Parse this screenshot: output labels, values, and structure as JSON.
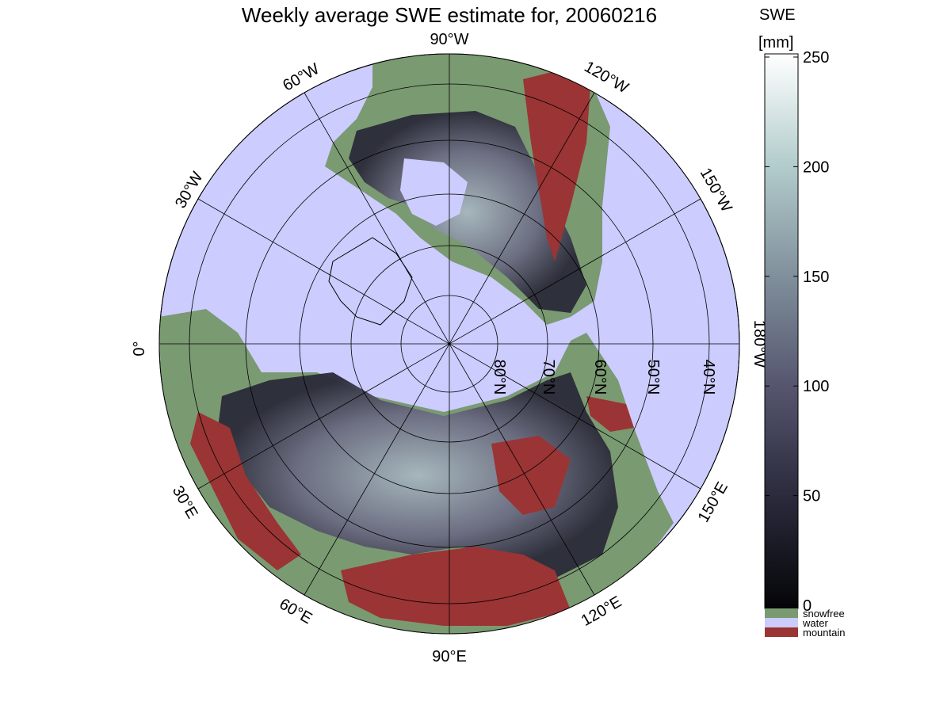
{
  "title": "Weekly average SWE estimate for, 20060216",
  "colorbar": {
    "title_line1": "SWE",
    "title_line2": "[mm]",
    "ticks": [
      "0",
      "50",
      "100",
      "150",
      "200",
      "250"
    ],
    "range": [
      0,
      250
    ],
    "categories": [
      {
        "label": "snowfree",
        "color": "#7a9a72"
      },
      {
        "label": "water",
        "color": "#ccccff"
      },
      {
        "label": "mountain",
        "color": "#9b3434"
      }
    ]
  },
  "map": {
    "projection": "north polar stereographic",
    "ocean_color": "#ccccff",
    "snowfree_color": "#7a9a72",
    "mountain_color": "#9b3434",
    "longitude_labels": {
      "lon_90w": "90°W",
      "lon_60w": "60°W",
      "lon_30w": "30°W",
      "lon_0": "0°",
      "lon_30e": "30°E",
      "lon_60e": "60°E",
      "lon_90e": "90°E",
      "lon_120e": "120°E",
      "lon_150e": "150°E",
      "lon_180w": "180°W",
      "lon_150w": "150°W",
      "lon_120w": "120°W"
    },
    "latitude_labels": [
      "80°N",
      "70°N",
      "60°N",
      "50°N",
      "40°N"
    ]
  }
}
